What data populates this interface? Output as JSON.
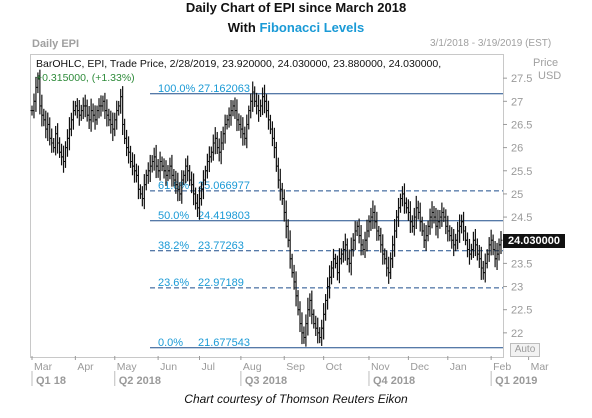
{
  "header": {
    "title_line1": "Daily Chart of EPI since March 2018",
    "title_line2_prefix": "With ",
    "title_line2_accent": "Fibonacci Levels",
    "symbol_label": "Daily EPI",
    "date_range": "3/1/2018 - 3/19/2019 (EST)",
    "axis_unit_line1": "Price",
    "axis_unit_line2": "USD",
    "ohlc_info": "BarOHLC, EPI, Trade Price, 2/28/2019, 23.920000, 24.030000, 23.880000, 24.030000,",
    "change_info": "+0.315000, (+1.33%)",
    "last_price": "24.030000",
    "auto_label": "Auto",
    "footer": "Chart courtesy of Thomson Reuters Eikon"
  },
  "chart_data": {
    "type": "bar",
    "title": "Daily Chart of EPI since March 2018",
    "subtitle": "With Fibonacci Levels",
    "bar_style": "OHLC",
    "ylim": [
      21.5,
      28.0
    ],
    "y_ticks": [
      22,
      22.5,
      23,
      23.5,
      24,
      24.5,
      25,
      25.5,
      26,
      26.5,
      27,
      27.5
    ],
    "y_tick_labels": [
      "22",
      "22.5",
      "23",
      "23.5",
      "24",
      "24.5",
      "25",
      "25.5",
      "26",
      "26.5",
      "27",
      "27.5"
    ],
    "x_month_labels": [
      "Mar",
      "Apr",
      "May",
      "Jun",
      "Jul",
      "Aug",
      "Sep",
      "Oct",
      "Nov",
      "Dec",
      "Jan",
      "Feb",
      "Mar"
    ],
    "x_quarter_labels": [
      "Q1 18",
      "Q2 2018",
      "Q3 2018",
      "Q4 2018",
      "Q1 2019"
    ],
    "last_value": 24.03,
    "fibonacci_levels": [
      {
        "label": "100.0%",
        "value": 27.162063,
        "value_text": "27.162063",
        "style": "solid"
      },
      {
        "label": "61.8%",
        "value": 25.066977,
        "value_text": "25.066977",
        "style": "dashed"
      },
      {
        "label": "50.0%",
        "value": 24.419803,
        "value_text": "24.419803",
        "style": "solid"
      },
      {
        "label": "38.2%",
        "value": 23.77263,
        "value_text": "23.77263",
        "style": "dashed"
      },
      {
        "label": "23.6%",
        "value": 22.97189,
        "value_text": "22.97189",
        "style": "dashed"
      },
      {
        "label": "0.0%",
        "value": 21.677543,
        "value_text": "21.677543",
        "style": "solid"
      }
    ],
    "month_bar_index": [
      0,
      22,
      42,
      64,
      85,
      106,
      128,
      148,
      171,
      191,
      211,
      233,
      252
    ],
    "close_values": [
      26.8,
      27.0,
      27.3,
      27.5,
      26.9,
      26.7,
      26.6,
      26.4,
      26.5,
      26.2,
      26.1,
      26.0,
      26.3,
      26.1,
      25.9,
      25.8,
      25.7,
      26.0,
      26.2,
      26.4,
      26.6,
      26.8,
      26.9,
      26.8,
      26.7,
      26.8,
      26.9,
      26.9,
      26.7,
      26.6,
      26.8,
      26.7,
      26.6,
      26.8,
      26.9,
      26.9,
      27.0,
      26.8,
      26.7,
      26.6,
      26.5,
      26.4,
      26.6,
      26.8,
      26.9,
      27.1,
      26.5,
      26.2,
      26.0,
      25.9,
      25.7,
      25.6,
      25.5,
      25.4,
      25.1,
      25.0,
      24.9,
      25.2,
      25.4,
      25.5,
      25.6,
      25.7,
      25.8,
      25.6,
      25.5,
      25.7,
      25.6,
      25.5,
      25.4,
      25.5,
      25.6,
      25.4,
      25.3,
      25.2,
      25.1,
      25.0,
      25.3,
      25.4,
      25.6,
      25.5,
      25.3,
      25.2,
      25.0,
      24.8,
      24.7,
      24.9,
      25.1,
      25.3,
      25.5,
      25.7,
      25.8,
      25.9,
      26.1,
      26.2,
      26.0,
      25.9,
      26.1,
      26.3,
      26.5,
      26.6,
      26.7,
      26.8,
      26.9,
      26.8,
      26.6,
      26.5,
      26.4,
      26.3,
      26.2,
      26.5,
      26.8,
      27.0,
      27.2,
      27.0,
      26.9,
      26.8,
      26.9,
      27.1,
      27.0,
      26.8,
      26.6,
      26.4,
      26.2,
      26.0,
      25.6,
      25.3,
      25.1,
      24.9,
      24.6,
      24.3,
      24.0,
      23.6,
      23.3,
      23.1,
      22.8,
      22.5,
      22.2,
      22.0,
      21.9,
      22.2,
      22.5,
      22.7,
      22.4,
      22.2,
      22.1,
      22.0,
      21.9,
      22.1,
      22.4,
      22.7,
      23.0,
      23.2,
      23.4,
      23.6,
      23.5,
      23.3,
      23.6,
      23.7,
      23.8,
      23.9,
      23.6,
      23.5,
      23.8,
      24.0,
      24.2,
      24.3,
      24.1,
      23.9,
      23.8,
      24.0,
      24.2,
      24.4,
      24.5,
      24.6,
      24.4,
      24.2,
      24.1,
      23.9,
      23.7,
      23.6,
      23.4,
      23.3,
      23.6,
      23.9,
      24.2,
      24.5,
      24.7,
      24.9,
      25.0,
      24.8,
      24.7,
      24.6,
      24.4,
      24.3,
      24.5,
      24.7,
      24.6,
      24.4,
      24.2,
      24.0,
      24.1,
      24.3,
      24.5,
      24.6,
      24.5,
      24.3,
      24.4,
      24.5,
      24.6,
      24.5,
      24.3,
      24.2,
      24.1,
      24.0,
      23.9,
      24.0,
      24.2,
      24.3,
      24.4,
      24.2,
      24.0,
      23.8,
      23.7,
      23.8,
      24.0,
      23.9,
      23.7,
      23.6,
      23.4,
      23.3,
      23.5,
      23.7,
      23.9,
      24.0,
      23.8,
      23.6,
      23.7,
      23.9,
      24.0
    ]
  }
}
